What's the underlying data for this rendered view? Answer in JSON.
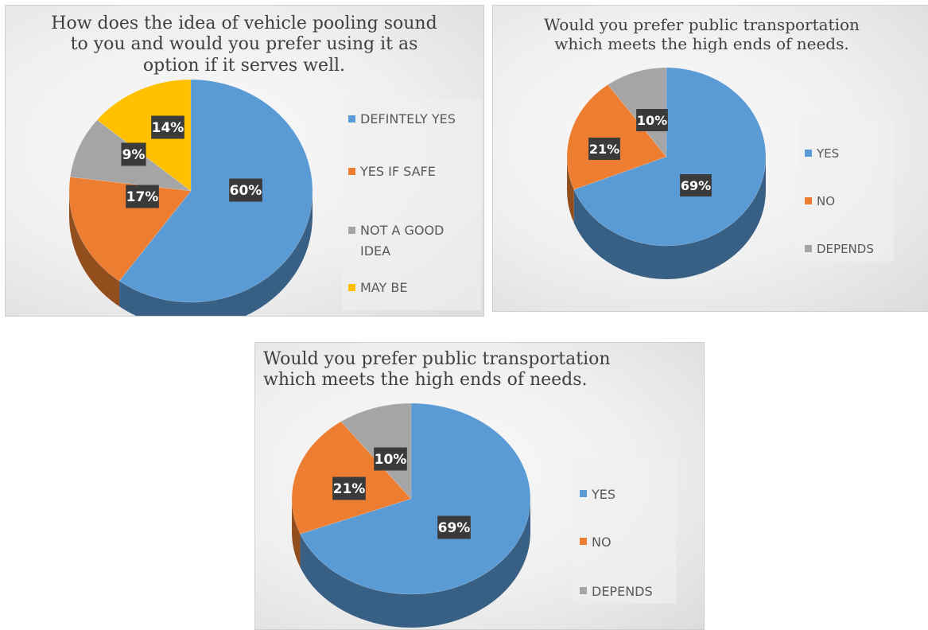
{
  "chart_data": [
    {
      "type": "pie",
      "title": "How does the idea of vehicle pooling sound to you and would you prefer using it as option if it serves well.",
      "title_lines": [
        "How does the idea of vehicle pooling sound",
        "to you and would you prefer using it as",
        "option if it serves well."
      ],
      "categories": [
        "DEFINTELY YES",
        "YES IF SAFE",
        "NOT A GOOD IDEA",
        "MAY BE"
      ],
      "values": [
        60,
        17,
        9,
        14
      ],
      "labels": [
        "60%",
        "17%",
        "9%",
        "14%"
      ],
      "colors": [
        "#5B9BD5",
        "#ED7D31",
        "#A5A5A5",
        "#FFC000"
      ],
      "legend_position": "right"
    },
    {
      "type": "pie",
      "title": "Would you prefer public transportation which meets the high ends of needs.",
      "title_lines": [
        "Would you prefer public transportation",
        "which meets the high ends of needs."
      ],
      "categories": [
        "YES",
        "NO",
        "DEPENDS"
      ],
      "values": [
        69,
        21,
        10
      ],
      "labels": [
        "69%",
        "21%",
        "10%"
      ],
      "colors": [
        "#5B9BD5",
        "#ED7D31",
        "#A5A5A5"
      ],
      "legend_position": "right"
    },
    {
      "type": "pie",
      "title": "Would you prefer public transportation which meets the high ends of needs.",
      "title_lines": [
        "Would you prefer public transportation",
        "which meets the high ends of needs."
      ],
      "categories": [
        "YES",
        "NO",
        "DEPENDS"
      ],
      "values": [
        69,
        21,
        10
      ],
      "labels": [
        "69%",
        "21%",
        "10%"
      ],
      "colors": [
        "#5B9BD5",
        "#ED7D31",
        "#A5A5A5"
      ],
      "legend_position": "right"
    }
  ]
}
